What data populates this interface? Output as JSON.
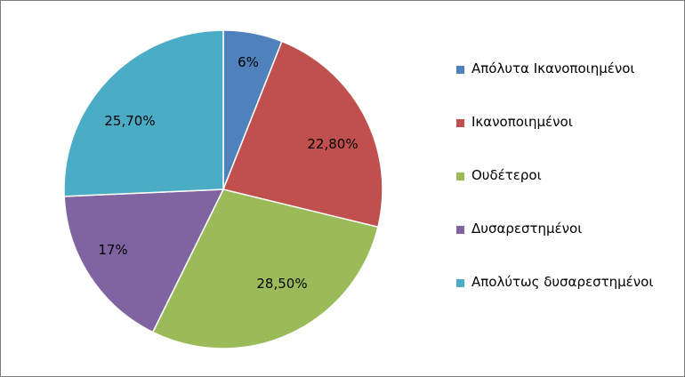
{
  "chart_data": {
    "type": "pie",
    "categories": [
      "Απόλυτα Ικανοποιημένοι",
      "Ικανοποιημένοι",
      "Ουδέτεροι",
      "Δυσαρεστημένοι",
      "Απολύτως δυσαρεστημένοι"
    ],
    "values": [
      6,
      22.8,
      28.5,
      17,
      25.7
    ],
    "data_labels": [
      "6%",
      "22,80%",
      "28,50%",
      "17%",
      "25,70%"
    ],
    "colors": [
      "#4f81bd",
      "#c0504d",
      "#9bbb59",
      "#8064a2",
      "#4bacc6"
    ],
    "start_angle": "12 o'clock",
    "direction": "clockwise",
    "legend_position": "right"
  }
}
